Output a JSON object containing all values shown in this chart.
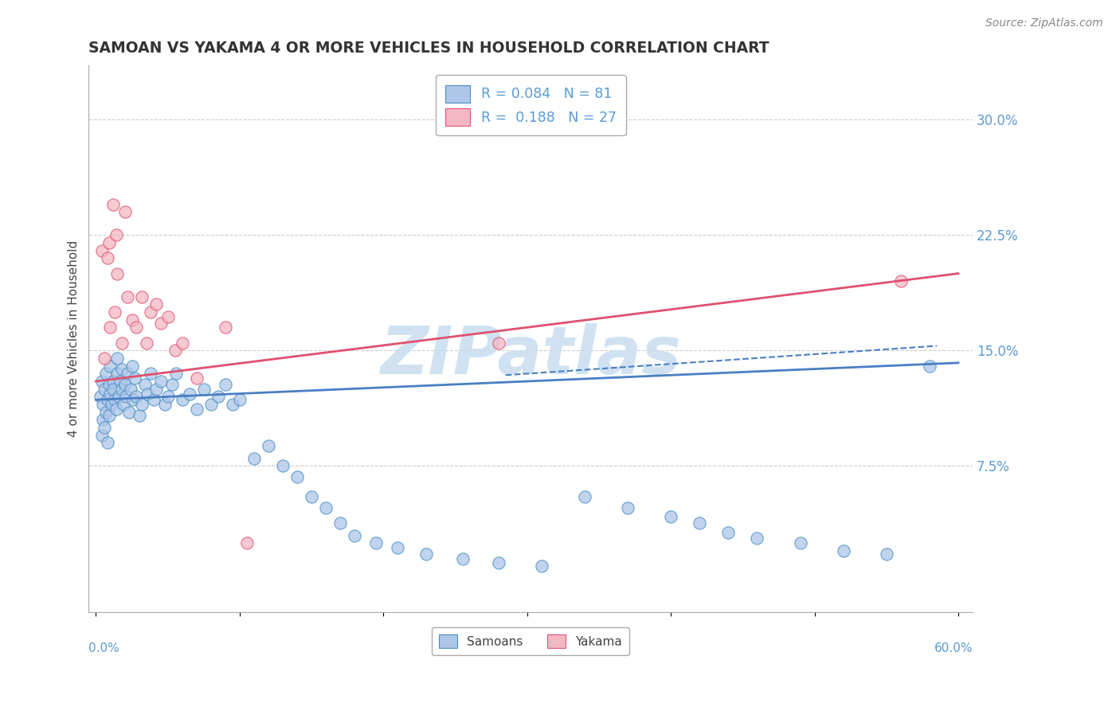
{
  "title": "SAMOAN VS YAKAMA 4 OR MORE VEHICLES IN HOUSEHOLD CORRELATION CHART",
  "source": "Source: ZipAtlas.com",
  "ylabel": "4 or more Vehicles in Household",
  "xlim": [
    0.0,
    0.6
  ],
  "ylim": [
    -0.02,
    0.335
  ],
  "samoans_color": "#aec6e8",
  "samoans_edge": "#4a90c4",
  "yakama_color": "#f4b8c4",
  "yakama_edge": "#e05070",
  "trend_blue_color": "#4a7fc4",
  "trend_pink_color": "#e05070",
  "watermark_color": "#c8ddf0",
  "sam_trend_x": [
    0.0,
    0.6
  ],
  "sam_trend_y": [
    0.118,
    0.142
  ],
  "yak_trend_x": [
    0.0,
    0.6
  ],
  "yak_trend_y": [
    0.13,
    0.2
  ],
  "dash_trend_x": [
    0.285,
    0.585
  ],
  "dash_trend_y": [
    0.134,
    0.153
  ],
  "samoans_x": [
    0.003,
    0.004,
    0.004,
    0.005,
    0.005,
    0.006,
    0.006,
    0.007,
    0.007,
    0.008,
    0.008,
    0.009,
    0.009,
    0.01,
    0.01,
    0.011,
    0.012,
    0.012,
    0.013,
    0.014,
    0.015,
    0.015,
    0.016,
    0.017,
    0.018,
    0.018,
    0.019,
    0.02,
    0.021,
    0.022,
    0.023,
    0.024,
    0.025,
    0.026,
    0.027,
    0.028,
    0.03,
    0.032,
    0.034,
    0.036,
    0.038,
    0.04,
    0.042,
    0.045,
    0.048,
    0.05,
    0.053,
    0.056,
    0.06,
    0.065,
    0.07,
    0.075,
    0.08,
    0.085,
    0.09,
    0.095,
    0.1,
    0.11,
    0.12,
    0.13,
    0.14,
    0.15,
    0.16,
    0.17,
    0.18,
    0.195,
    0.21,
    0.23,
    0.255,
    0.28,
    0.31,
    0.34,
    0.37,
    0.4,
    0.42,
    0.44,
    0.46,
    0.49,
    0.52,
    0.55,
    0.58
  ],
  "samoans_y": [
    0.12,
    0.095,
    0.13,
    0.105,
    0.115,
    0.1,
    0.125,
    0.11,
    0.135,
    0.09,
    0.118,
    0.128,
    0.108,
    0.122,
    0.14,
    0.115,
    0.13,
    0.125,
    0.118,
    0.112,
    0.135,
    0.145,
    0.12,
    0.13,
    0.125,
    0.138,
    0.115,
    0.128,
    0.12,
    0.135,
    0.11,
    0.125,
    0.14,
    0.118,
    0.132,
    0.12,
    0.108,
    0.115,
    0.128,
    0.122,
    0.135,
    0.118,
    0.125,
    0.13,
    0.115,
    0.12,
    0.128,
    0.135,
    0.118,
    0.122,
    0.112,
    0.125,
    0.115,
    0.12,
    0.128,
    0.115,
    0.118,
    0.08,
    0.088,
    0.075,
    0.068,
    0.055,
    0.048,
    0.038,
    0.03,
    0.025,
    0.022,
    0.018,
    0.015,
    0.012,
    0.01,
    0.055,
    0.048,
    0.042,
    0.038,
    0.032,
    0.028,
    0.025,
    0.02,
    0.018,
    0.14
  ],
  "yakama_x": [
    0.004,
    0.006,
    0.008,
    0.009,
    0.01,
    0.012,
    0.013,
    0.014,
    0.015,
    0.018,
    0.02,
    0.022,
    0.025,
    0.028,
    0.032,
    0.035,
    0.038,
    0.042,
    0.045,
    0.05,
    0.055,
    0.06,
    0.07,
    0.09,
    0.105,
    0.28,
    0.56
  ],
  "yakama_y": [
    0.215,
    0.145,
    0.21,
    0.22,
    0.165,
    0.245,
    0.175,
    0.225,
    0.2,
    0.155,
    0.24,
    0.185,
    0.17,
    0.165,
    0.185,
    0.155,
    0.175,
    0.18,
    0.168,
    0.172,
    0.15,
    0.155,
    0.132,
    0.165,
    0.025,
    0.155,
    0.195
  ]
}
